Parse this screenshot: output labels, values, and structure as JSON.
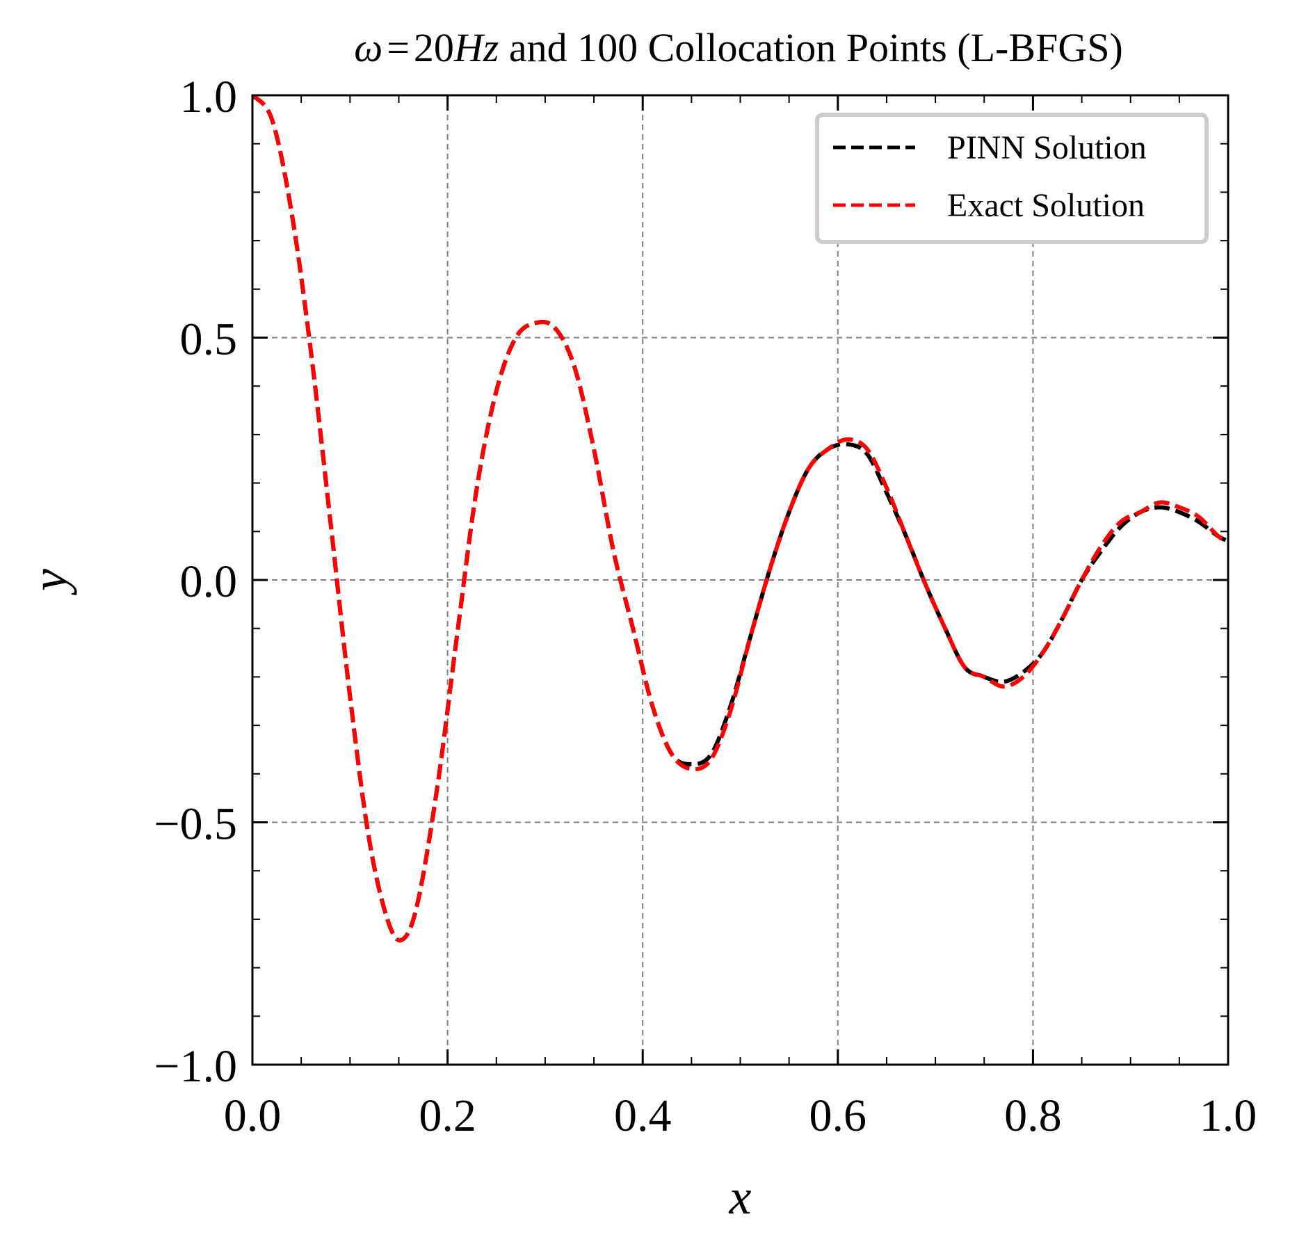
{
  "chart_data": {
    "type": "line",
    "title": {
      "omega_symbol": "ω",
      "equals": "=",
      "value": "20",
      "unit": "Hz",
      "rest": " and 100 Collocation Points (L-BFGS)"
    },
    "xlabel": "x",
    "ylabel": "y",
    "xlim": [
      0.0,
      1.0
    ],
    "ylim": [
      -1.0,
      1.0
    ],
    "xticks": [
      0.0,
      0.2,
      0.4,
      0.6,
      0.8,
      1.0
    ],
    "xtick_labels": [
      "0.0",
      "0.2",
      "0.4",
      "0.6",
      "0.8",
      "1.0"
    ],
    "yticks": [
      -1.0,
      -0.5,
      0.0,
      0.5,
      1.0
    ],
    "ytick_labels": [
      "−1.0",
      "−0.5",
      "0.0",
      "0.5",
      "1.0"
    ],
    "grid": true,
    "legend_position": "top-right",
    "series": [
      {
        "name": "PINN Solution",
        "color": "#000000",
        "style": "dashed",
        "x": [
          0.0,
          0.02,
          0.04,
          0.06,
          0.08,
          0.1,
          0.12,
          0.14,
          0.155,
          0.17,
          0.19,
          0.21,
          0.23,
          0.25,
          0.27,
          0.29,
          0.31,
          0.33,
          0.35,
          0.37,
          0.39,
          0.41,
          0.43,
          0.45,
          0.47,
          0.49,
          0.51,
          0.53,
          0.55,
          0.57,
          0.59,
          0.61,
          0.63,
          0.65,
          0.67,
          0.69,
          0.71,
          0.73,
          0.75,
          0.77,
          0.79,
          0.81,
          0.83,
          0.85,
          0.87,
          0.89,
          0.91,
          0.93,
          0.95,
          0.97,
          0.99,
          1.0
        ],
        "y": [
          1.0,
          0.95,
          0.76,
          0.47,
          0.12,
          -0.24,
          -0.54,
          -0.71,
          -0.74,
          -0.66,
          -0.42,
          -0.11,
          0.19,
          0.39,
          0.5,
          0.53,
          0.52,
          0.44,
          0.27,
          0.06,
          -0.1,
          -0.26,
          -0.36,
          -0.38,
          -0.36,
          -0.26,
          -0.12,
          0.02,
          0.14,
          0.23,
          0.27,
          0.28,
          0.26,
          0.18,
          0.09,
          -0.01,
          -0.1,
          -0.18,
          -0.2,
          -0.21,
          -0.19,
          -0.15,
          -0.08,
          0.0,
          0.06,
          0.11,
          0.14,
          0.15,
          0.14,
          0.12,
          0.09,
          0.08
        ]
      },
      {
        "name": "Exact Solution",
        "color": "#ff0000",
        "style": "dashed",
        "x": [
          0.0,
          0.02,
          0.04,
          0.06,
          0.08,
          0.1,
          0.12,
          0.14,
          0.155,
          0.17,
          0.19,
          0.21,
          0.23,
          0.25,
          0.27,
          0.29,
          0.31,
          0.33,
          0.35,
          0.37,
          0.39,
          0.41,
          0.43,
          0.45,
          0.47,
          0.49,
          0.51,
          0.53,
          0.55,
          0.57,
          0.59,
          0.61,
          0.63,
          0.65,
          0.67,
          0.69,
          0.71,
          0.73,
          0.75,
          0.77,
          0.79,
          0.81,
          0.83,
          0.85,
          0.87,
          0.89,
          0.91,
          0.93,
          0.95,
          0.97,
          0.99,
          1.0
        ],
        "y": [
          1.0,
          0.95,
          0.76,
          0.47,
          0.12,
          -0.24,
          -0.54,
          -0.71,
          -0.74,
          -0.66,
          -0.42,
          -0.11,
          0.19,
          0.39,
          0.5,
          0.53,
          0.52,
          0.44,
          0.27,
          0.06,
          -0.1,
          -0.26,
          -0.36,
          -0.39,
          -0.37,
          -0.27,
          -0.12,
          0.02,
          0.14,
          0.23,
          0.27,
          0.29,
          0.27,
          0.19,
          0.09,
          -0.01,
          -0.1,
          -0.18,
          -0.2,
          -0.22,
          -0.2,
          -0.15,
          -0.08,
          0.0,
          0.07,
          0.12,
          0.14,
          0.16,
          0.15,
          0.13,
          0.09,
          0.08
        ]
      }
    ]
  }
}
